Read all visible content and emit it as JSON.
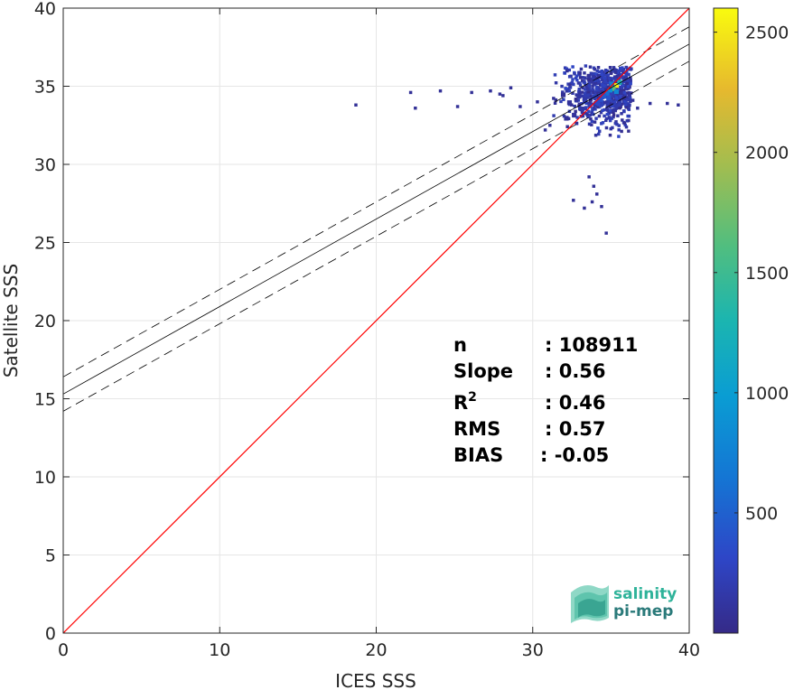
{
  "chart_data": {
    "type": "heatmap",
    "xlabel": "ICES SSS",
    "ylabel": "Satellite SSS",
    "xlim": [
      0,
      40
    ],
    "ylim": [
      0,
      40
    ],
    "xticks": [
      "0",
      "10",
      "20",
      "30",
      "40"
    ],
    "yticks": [
      "0",
      "5",
      "10",
      "15",
      "20",
      "25",
      "30",
      "35",
      "40"
    ],
    "grid": true,
    "colorbar": {
      "range": [
        0,
        2600
      ],
      "ticks": [
        "500",
        "1000",
        "1500",
        "2000",
        "2500"
      ],
      "colormap": "parula"
    },
    "reference_line": {
      "label": "1:1",
      "color": "#ff0000",
      "x": [
        0,
        40
      ],
      "y": [
        0,
        40
      ]
    },
    "fit_line": {
      "intercept": 15.3,
      "slope": 0.56,
      "color": "#000000"
    },
    "fit_bounds": {
      "offset": 1.1,
      "color": "#000000",
      "style": "dashed"
    },
    "stats": [
      {
        "label": "n",
        "value": ": 108911"
      },
      {
        "label": "Slope",
        "value": ": 0.56"
      },
      {
        "label": "R",
        "sup": "2",
        "value": ": 0.46"
      },
      {
        "label": "RMS",
        "value": ": 0.57"
      },
      {
        "label": "BIAS",
        "value": ": -0.05"
      }
    ],
    "density_bins": [
      {
        "x": 35.2,
        "y": 34.9,
        "count": 2550
      },
      {
        "x": 35.0,
        "y": 34.7,
        "count": 1700
      },
      {
        "x": 35.4,
        "y": 35.1,
        "count": 1300
      },
      {
        "x": 34.8,
        "y": 34.6,
        "count": 900
      },
      {
        "x": 35.2,
        "y": 34.5,
        "count": 800
      },
      {
        "x": 34.6,
        "y": 34.4,
        "count": 600
      },
      {
        "x": 34.9,
        "y": 35.0,
        "count": 700
      },
      {
        "x": 34.4,
        "y": 34.2,
        "count": 450
      },
      {
        "x": 34.2,
        "y": 34.0,
        "count": 380
      },
      {
        "x": 34.0,
        "y": 33.8,
        "count": 320
      },
      {
        "x": 34.7,
        "y": 34.1,
        "count": 400
      },
      {
        "x": 33.8,
        "y": 34.2,
        "count": 250
      },
      {
        "x": 33.5,
        "y": 33.6,
        "count": 200
      },
      {
        "x": 33.2,
        "y": 34.0,
        "count": 160
      },
      {
        "x": 33.0,
        "y": 33.4,
        "count": 140
      },
      {
        "x": 32.8,
        "y": 34.2,
        "count": 120
      },
      {
        "x": 32.5,
        "y": 33.0,
        "count": 100
      },
      {
        "x": 32.2,
        "y": 33.8,
        "count": 90
      },
      {
        "x": 32.0,
        "y": 32.8,
        "count": 80
      },
      {
        "x": 31.8,
        "y": 34.3,
        "count": 70
      }
    ]
  },
  "logo": {
    "line1": "salinity",
    "line2": "pi-mep",
    "color1": "#2fb39a",
    "color2": "#2a7a7a"
  }
}
